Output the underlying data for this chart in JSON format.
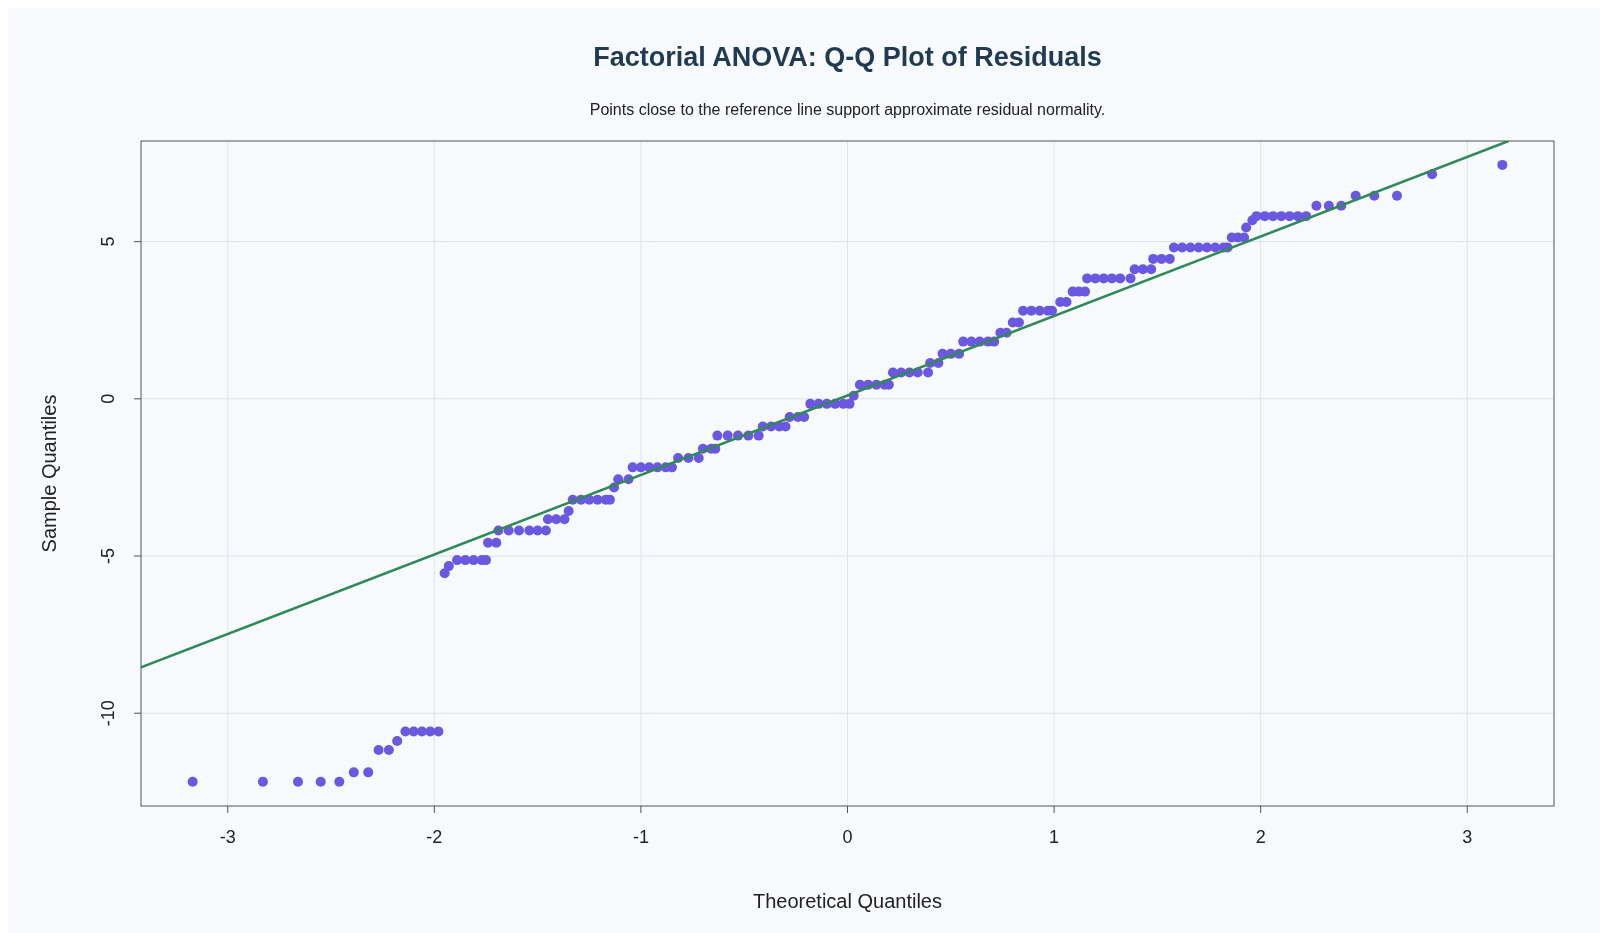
{
  "chart_data": {
    "type": "scatter",
    "title": "Factorial ANOVA: Q-Q Plot of Residuals",
    "subtitle": "Points close to the reference line support approximate residual normality.",
    "xlabel": "Theoretical Quantiles",
    "ylabel": "Sample Quantiles",
    "xlim": [
      -3.42,
      3.42
    ],
    "ylim": [
      -12.95,
      8.2
    ],
    "xticks": [
      -3,
      -2,
      -1,
      0,
      1,
      2,
      3
    ],
    "yticks": [
      -10,
      -5,
      0,
      5
    ],
    "grid": true,
    "series": [
      {
        "marker": "circle",
        "color": "#6b57e0",
        "x": [
          -3.17,
          -2.83,
          -2.66,
          -2.55,
          -2.46,
          -2.39,
          -2.32,
          -2.27,
          -2.22,
          -2.18,
          -2.14,
          -2.1,
          -2.06,
          -2.02,
          -1.98,
          -1.95,
          -1.93,
          -1.89,
          -1.85,
          -1.81,
          -1.77,
          -1.75,
          -1.74,
          -1.7,
          -1.69,
          -1.64,
          -1.59,
          -1.54,
          -1.5,
          -1.46,
          -1.45,
          -1.41,
          -1.37,
          -1.35,
          -1.33,
          -1.29,
          -1.25,
          -1.21,
          -1.17,
          -1.15,
          -1.13,
          -1.11,
          -1.06,
          -1.04,
          -1.0,
          -0.96,
          -0.92,
          -0.88,
          -0.85,
          -0.82,
          -0.77,
          -0.72,
          -0.7,
          -0.66,
          -0.64,
          -0.63,
          -0.58,
          -0.53,
          -0.48,
          -0.43,
          -0.41,
          -0.37,
          -0.33,
          -0.3,
          -0.28,
          -0.24,
          -0.21,
          -0.18,
          -0.14,
          -0.1,
          -0.06,
          -0.02,
          0.01,
          0.03,
          0.06,
          0.1,
          0.14,
          0.18,
          0.2,
          0.22,
          0.26,
          0.3,
          0.34,
          0.39,
          0.4,
          0.44,
          0.46,
          0.5,
          0.54,
          0.56,
          0.6,
          0.64,
          0.68,
          0.71,
          0.74,
          0.77,
          0.8,
          0.83,
          0.85,
          0.89,
          0.93,
          0.97,
          0.99,
          1.03,
          1.06,
          1.09,
          1.12,
          1.15,
          1.16,
          1.2,
          1.24,
          1.28,
          1.32,
          1.37,
          1.39,
          1.43,
          1.47,
          1.48,
          1.52,
          1.56,
          1.58,
          1.62,
          1.66,
          1.7,
          1.74,
          1.78,
          1.82,
          1.84,
          1.86,
          1.89,
          1.92,
          1.93,
          1.96,
          1.98,
          2.02,
          2.06,
          2.1,
          2.14,
          2.18,
          2.22,
          2.27,
          2.33,
          2.39,
          2.46,
          2.55,
          2.66,
          2.83,
          3.17
        ],
        "values": [
          -12.18,
          -12.18,
          -12.18,
          -12.18,
          -12.18,
          -11.88,
          -11.88,
          -11.17,
          -11.17,
          -10.88,
          -10.58,
          -10.58,
          -10.58,
          -10.58,
          -10.58,
          -5.55,
          -5.32,
          -5.13,
          -5.13,
          -5.13,
          -5.13,
          -5.13,
          -4.58,
          -4.58,
          -4.19,
          -4.19,
          -4.19,
          -4.19,
          -4.19,
          -4.19,
          -3.83,
          -3.83,
          -3.83,
          -3.57,
          -3.21,
          -3.21,
          -3.21,
          -3.21,
          -3.21,
          -3.21,
          -2.82,
          -2.56,
          -2.56,
          -2.18,
          -2.18,
          -2.18,
          -2.18,
          -2.18,
          -2.18,
          -1.88,
          -1.88,
          -1.88,
          -1.59,
          -1.59,
          -1.59,
          -1.17,
          -1.17,
          -1.17,
          -1.17,
          -1.17,
          -0.88,
          -0.88,
          -0.88,
          -0.88,
          -0.58,
          -0.58,
          -0.58,
          -0.16,
          -0.16,
          -0.16,
          -0.16,
          -0.16,
          -0.16,
          0.1,
          0.45,
          0.45,
          0.45,
          0.45,
          0.45,
          0.84,
          0.84,
          0.84,
          0.84,
          0.84,
          1.14,
          1.14,
          1.43,
          1.43,
          1.43,
          1.82,
          1.82,
          1.82,
          1.82,
          1.82,
          2.1,
          2.1,
          2.43,
          2.43,
          2.8,
          2.8,
          2.8,
          2.8,
          2.8,
          3.08,
          3.08,
          3.41,
          3.41,
          3.41,
          3.83,
          3.83,
          3.83,
          3.83,
          3.83,
          3.83,
          4.12,
          4.12,
          4.12,
          4.45,
          4.45,
          4.45,
          4.81,
          4.81,
          4.81,
          4.81,
          4.81,
          4.81,
          4.81,
          4.81,
          5.13,
          5.13,
          5.13,
          5.45,
          5.68,
          5.81,
          5.81,
          5.81,
          5.81,
          5.81,
          5.81,
          5.81,
          6.14,
          6.14,
          6.14,
          6.46,
          6.46,
          6.46,
          7.14,
          7.44
        ]
      },
      {
        "type": "line",
        "color": "#2e8b57",
        "line_style": "solid",
        "x": [
          -3.42,
          3.2
        ],
        "values": [
          -8.54,
          8.2
        ]
      }
    ]
  }
}
